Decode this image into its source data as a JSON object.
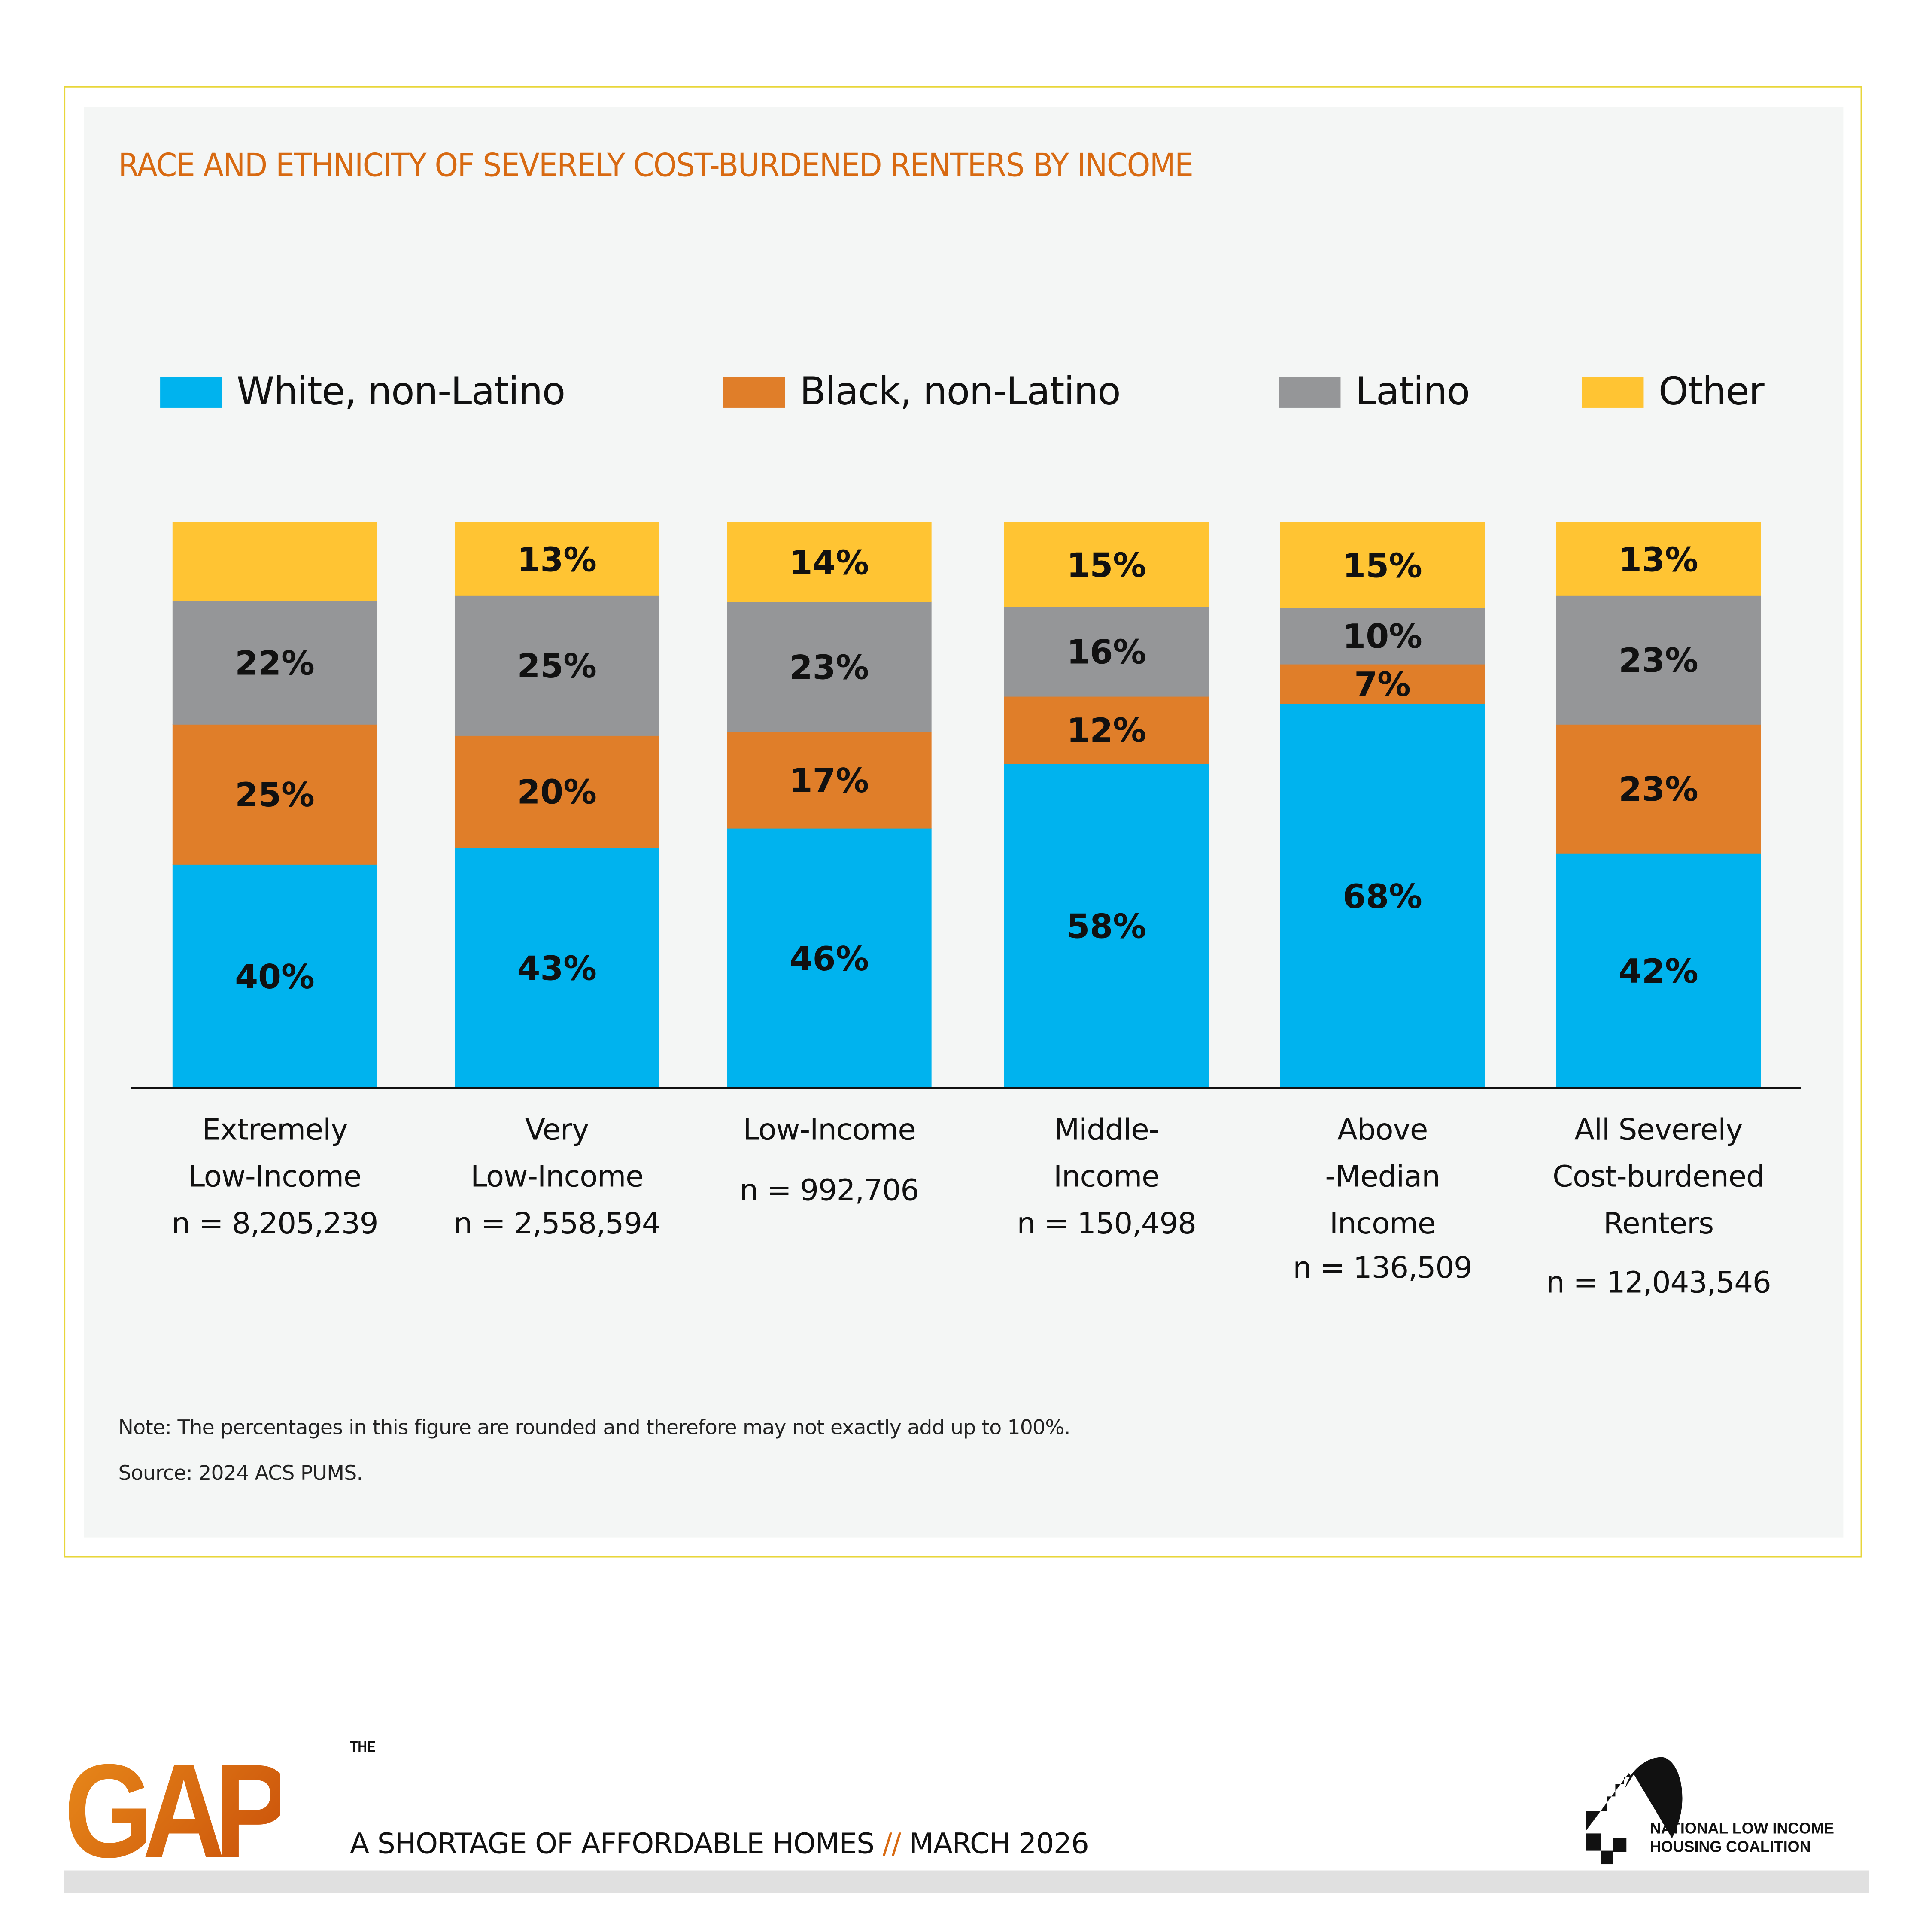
{
  "chart_data": {
    "type": "bar",
    "stacked": true,
    "title": "RACE AND ETHNICITY OF SEVERELY COST-BURDENED RENTERS BY INCOME",
    "xlabel": "",
    "ylabel": "",
    "ylim": [
      0,
      100
    ],
    "grid": false,
    "legend_position": "top",
    "categories": [
      {
        "lines": [
          "Extremely",
          "Low-Income"
        ],
        "n": "n = 8,205,239"
      },
      {
        "lines": [
          "Very",
          "Low-Income"
        ],
        "n": "n = 2,558,594"
      },
      {
        "lines": [
          "Low-Income"
        ],
        "n": "n = 992,706"
      },
      {
        "lines": [
          "Middle-",
          "Income"
        ],
        "n": "n = 150,498"
      },
      {
        "lines": [
          "Above",
          "-Median",
          "Income"
        ],
        "n": "n = 136,509"
      },
      {
        "lines": [
          "All Severely",
          "Cost-burdened",
          "Renters"
        ],
        "n": "n = 12,043,546"
      }
    ],
    "series": [
      {
        "name": "White, non-Latino",
        "color": "#00b3ee",
        "values": [
          40,
          43,
          46,
          58,
          68,
          42
        ],
        "labels": [
          "40%",
          "43%",
          "46%",
          "58%",
          "68%",
          "42%"
        ]
      },
      {
        "name": "Black, non-Latino",
        "color": "#e07e29",
        "values": [
          25,
          20,
          17,
          12,
          7,
          23
        ],
        "labels": [
          "25%",
          "20%",
          "17%",
          "12%",
          "7%",
          "23%"
        ]
      },
      {
        "name": "Latino",
        "color": "#959698",
        "values": [
          22,
          25,
          23,
          16,
          10,
          23
        ],
        "labels": [
          "22%",
          "25%",
          "23%",
          "16%",
          "10%",
          "23%"
        ]
      },
      {
        "name": "Other",
        "color": "#ffc433",
        "values": [
          14,
          13,
          14,
          15,
          15,
          13
        ],
        "labels": [
          "",
          "13%",
          "14%",
          "15%",
          "15%",
          "13%"
        ]
      }
    ]
  },
  "notes": {
    "note": "Note: The percentages in this figure are rounded and therefore may not exactly add up to 100%.",
    "source": "Source: 2024 ACS PUMS."
  },
  "footer": {
    "logo_the": "THE",
    "logo_gap": "GAP",
    "tagline_main": "A SHORTAGE OF AFFORDABLE HOMES",
    "tagline_sep": "//",
    "tagline_date": "MARCH 2026",
    "org_line1": "NATIONAL LOW INCOME",
    "org_line2": "HOUSING COALITION"
  },
  "colors": {
    "title": "#d86a12",
    "border": "#e8d63a",
    "panel": "#f4f6f5"
  }
}
